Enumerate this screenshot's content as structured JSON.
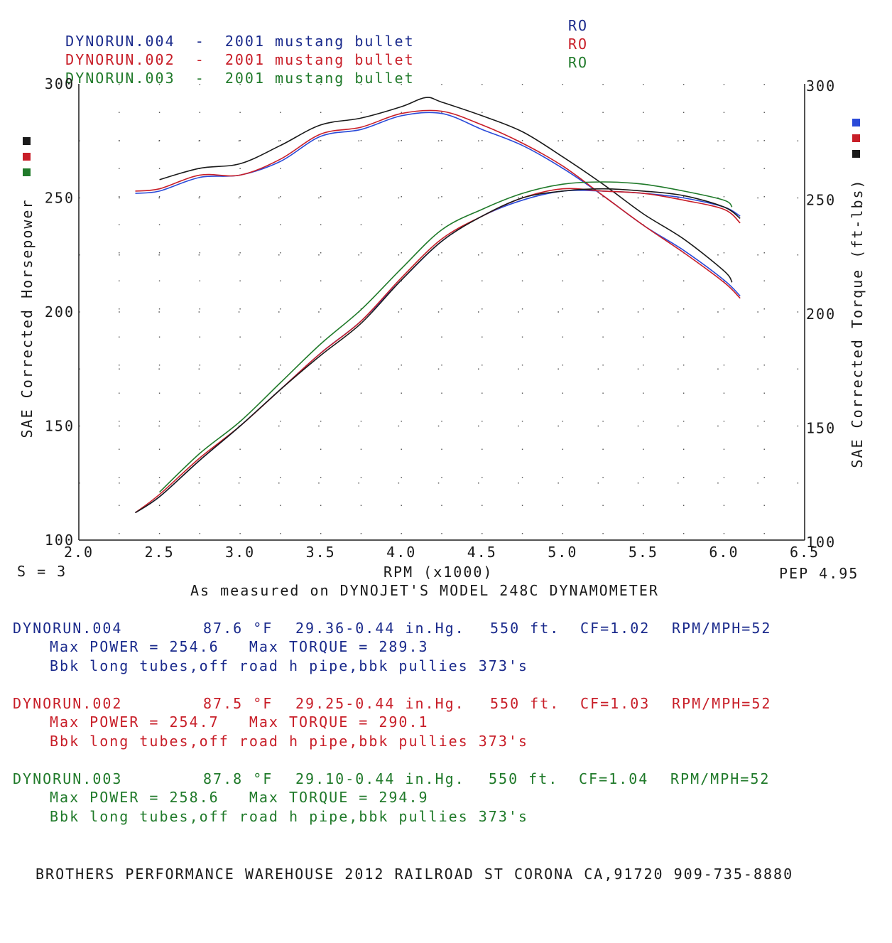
{
  "header_runs": [
    {
      "name": "DYNORUN.004",
      "desc": "2001 mustang bullet",
      "flag": "RO",
      "color": "#1a2a8c"
    },
    {
      "name": "DYNORUN.002",
      "desc": "2001 mustang bullet",
      "flag": "RO",
      "color": "#c81e28"
    },
    {
      "name": "DYNORUN.003",
      "desc": "2001 mustang bullet",
      "flag": "RO",
      "color": "#207a2a"
    }
  ],
  "colors": {
    "blue": "#2a4ad8",
    "red": "#c81e28",
    "green": "#207a2a",
    "black": "#1a1a1a",
    "grid": "#555555"
  },
  "chart_data": {
    "type": "line",
    "xlabel": "RPM (x1000)",
    "ylabel_left": "SAE Corrected Horsepower",
    "ylabel_right": "SAE Corrected Torque (ft-lbs)",
    "xlim": [
      2.0,
      6.5
    ],
    "ylim": [
      100,
      300
    ],
    "x_ticks": [
      "2.0",
      "2.5",
      "3.0",
      "3.5",
      "4.0",
      "4.5",
      "5.0",
      "5.5",
      "6.0",
      "6.5"
    ],
    "y_ticks": [
      "100",
      "150",
      "200",
      "250",
      "300"
    ],
    "grid": true,
    "legend_swatches_left": [
      "black",
      "red",
      "green"
    ],
    "legend_swatches_right": [
      "blue",
      "red",
      "black"
    ],
    "series": [
      {
        "kind": "torque",
        "color_key": "blue",
        "x": [
          2.35,
          2.5,
          2.75,
          3.0,
          3.25,
          3.5,
          3.75,
          4.0,
          4.25,
          4.5,
          4.75,
          5.0,
          5.25,
          5.5,
          5.75,
          6.0,
          6.1
        ],
        "values": [
          252,
          253,
          259,
          260,
          266,
          277,
          280,
          286,
          287,
          280,
          273,
          263,
          251,
          238,
          227,
          214,
          207
        ]
      },
      {
        "kind": "torque",
        "color_key": "red",
        "x": [
          2.35,
          2.5,
          2.75,
          3.0,
          3.25,
          3.5,
          3.75,
          4.0,
          4.25,
          4.5,
          4.75,
          5.0,
          5.25,
          5.5,
          5.75,
          6.0,
          6.1
        ],
        "values": [
          253,
          254,
          260,
          260,
          267,
          278,
          281,
          287,
          288,
          282,
          274,
          264,
          251,
          238,
          226,
          213,
          206
        ]
      },
      {
        "kind": "torque",
        "color_key": "black",
        "x": [
          2.5,
          2.75,
          3.0,
          3.25,
          3.5,
          3.75,
          4.0,
          4.15,
          4.25,
          4.5,
          4.75,
          5.0,
          5.25,
          5.5,
          5.75,
          6.0,
          6.05
        ],
        "values": [
          258,
          263,
          265,
          273,
          282,
          285,
          290,
          294,
          292,
          286,
          279,
          268,
          256,
          243,
          232,
          218,
          213
        ]
      },
      {
        "kind": "power",
        "color_key": "blue",
        "x": [
          2.35,
          2.5,
          2.75,
          3.0,
          3.25,
          3.5,
          3.75,
          4.0,
          4.25,
          4.5,
          4.75,
          5.0,
          5.25,
          5.5,
          5.75,
          6.0,
          6.1
        ],
        "values": [
          112,
          119,
          135,
          150,
          166,
          182,
          196,
          214,
          231,
          242,
          249,
          253,
          253,
          252,
          250,
          246,
          242
        ]
      },
      {
        "kind": "power",
        "color_key": "red",
        "x": [
          2.35,
          2.5,
          2.75,
          3.0,
          3.25,
          3.5,
          3.75,
          4.0,
          4.25,
          4.5,
          4.75,
          5.0,
          5.25,
          5.5,
          5.75,
          6.0,
          6.1
        ],
        "values": [
          112,
          120,
          136,
          150,
          166,
          182,
          196,
          215,
          232,
          242,
          250,
          254,
          253,
          252,
          249,
          245,
          239
        ]
      },
      {
        "kind": "power",
        "color_key": "black",
        "x": [
          2.35,
          2.5,
          2.75,
          3.0,
          3.25,
          3.5,
          3.75,
          4.0,
          4.25,
          4.5,
          4.75,
          5.0,
          5.25,
          5.5,
          5.75,
          6.0,
          6.1
        ],
        "values": [
          112,
          119,
          135,
          150,
          166,
          181,
          195,
          214,
          231,
          242,
          250,
          253,
          254,
          253,
          251,
          246,
          241
        ]
      },
      {
        "kind": "power",
        "color_key": "green",
        "x": [
          2.5,
          2.75,
          3.0,
          3.25,
          3.5,
          3.75,
          4.0,
          4.25,
          4.5,
          4.75,
          5.0,
          5.25,
          5.5,
          5.75,
          6.0,
          6.05
        ],
        "values": [
          121,
          138,
          152,
          169,
          186,
          201,
          219,
          236,
          245,
          252,
          256,
          257,
          256,
          253,
          249,
          246
        ]
      }
    ]
  },
  "under_chart": {
    "smoothing": "S = 3",
    "pep": "PEP 4.95",
    "measured": "As measured on DYNOJET'S MODEL 248C DYNAMOMETER"
  },
  "runs": [
    {
      "name": "DYNORUN.004",
      "temp": "87.6 °F",
      "baro": "29.36-0.44 in.Hg.",
      "alt": "550 ft.",
      "cf": "CF=1.02",
      "rpmmph": "RPM/MPH=52",
      "max_line": "Max POWER = 254.6   Max TORQUE = 289.3",
      "note": "Bbk long tubes,off road h pipe,bbk pullies 373's",
      "color": "#1a2a8c"
    },
    {
      "name": "DYNORUN.002",
      "temp": "87.5 °F",
      "baro": "29.25-0.44 in.Hg.",
      "alt": "550 ft.",
      "cf": "CF=1.03",
      "rpmmph": "RPM/MPH=52",
      "max_line": "Max POWER = 254.7   Max TORQUE = 290.1",
      "note": "Bbk long tubes,off road h pipe,bbk pullies 373's",
      "color": "#c81e28"
    },
    {
      "name": "DYNORUN.003",
      "temp": "87.8 °F",
      "baro": "29.10-0.44 in.Hg.",
      "alt": "550 ft.",
      "cf": "CF=1.04",
      "rpmmph": "RPM/MPH=52",
      "max_line": "Max POWER = 258.6   Max TORQUE = 294.9",
      "note": "Bbk long tubes,off road h pipe,bbk pullies 373's",
      "color": "#207a2a"
    }
  ],
  "footer": "BROTHERS PERFORMANCE WAREHOUSE 2012 RAILROAD ST CORONA CA,91720 909-735-8880"
}
